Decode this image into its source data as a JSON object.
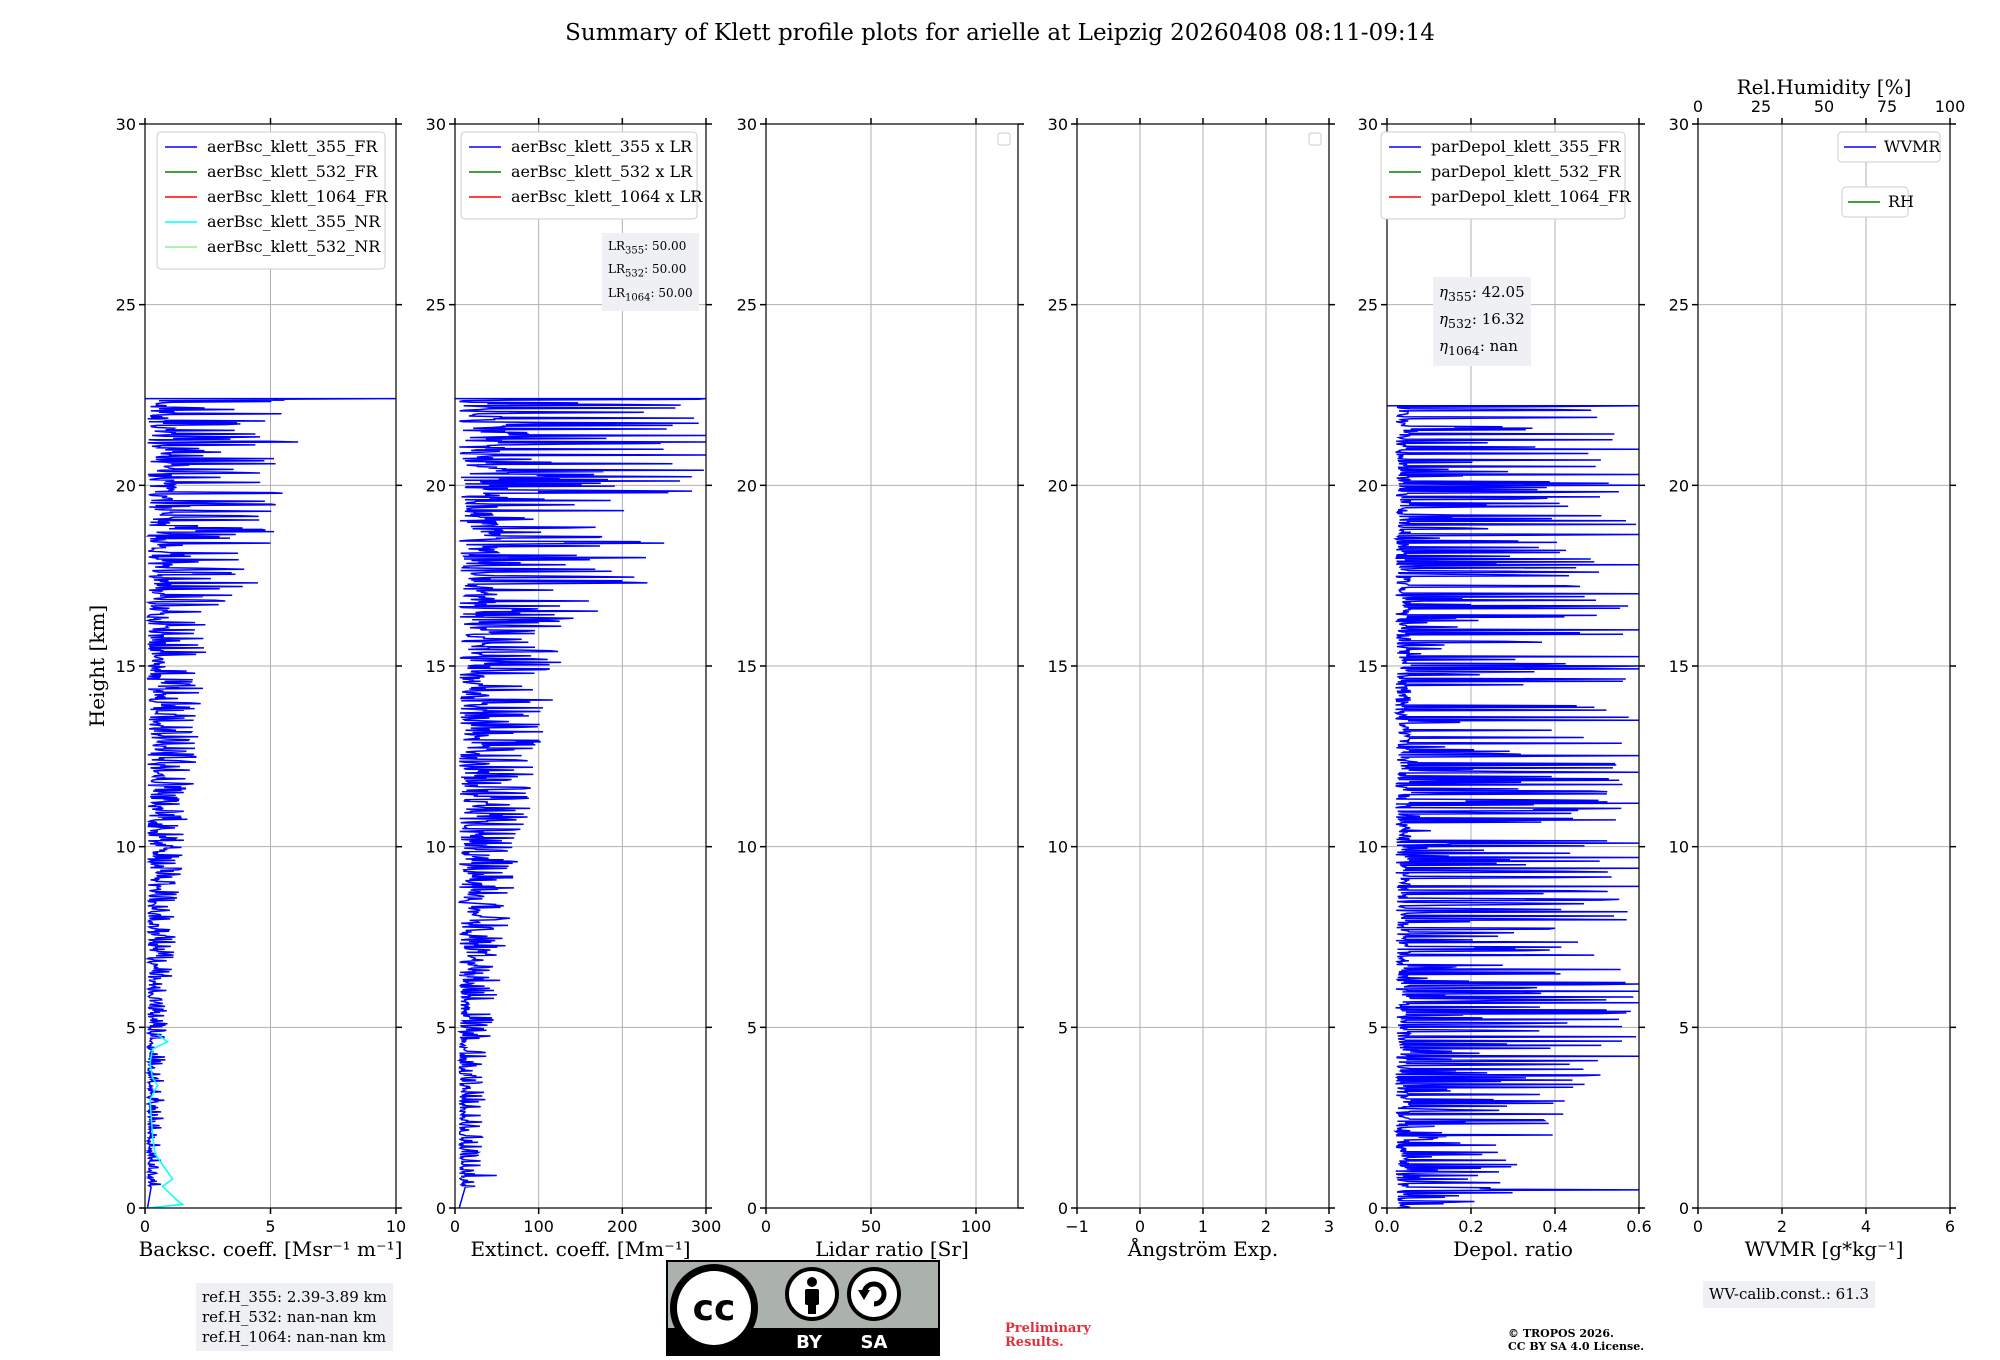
{
  "title": "Summary of Klett profile plots for arielle at Leipzig 20260408 08:11-09:14",
  "colors": {
    "blue": "#0000ff",
    "green": "#008000",
    "red": "#ff0000",
    "cyan": "#00ffff",
    "lightgreen": "#90ee90",
    "grid": "#b0b0b0"
  },
  "chart_data": [
    {
      "type": "line",
      "name": "backscatter",
      "xlabel": "Backsc. coeff. [Msr⁻¹ m⁻¹]",
      "ylabel": "Height [km]",
      "xlim": [
        0,
        10
      ],
      "ylim": [
        0,
        30
      ],
      "xticks": [
        0,
        5,
        10
      ],
      "yticks": [
        0,
        5,
        10,
        15,
        20,
        25,
        30
      ],
      "legend": [
        "aerBsc_klett_355_FR",
        "aerBsc_klett_532_FR",
        "aerBsc_klett_1064_FR",
        "aerBsc_klett_355_NR",
        "aerBsc_klett_532_NR"
      ],
      "legend_colors": [
        "blue",
        "green",
        "red",
        "cyan",
        "lightgreen"
      ],
      "series": [
        {
          "name": "aerBsc_klett_355_FR",
          "color": "blue",
          "base": 0.1,
          "noise_lo": [
            0.15,
            0.3,
            1.0,
            1.0,
            1.6
          ],
          "noise_hi": [
            0.5,
            0.8,
            1.5,
            2.5,
            6.0
          ],
          "spikes": [
            [
              22.4,
              10
            ],
            [
              21.7,
              3.8
            ],
            [
              21.2,
              6.1
            ],
            [
              20.6,
              5.2
            ],
            [
              19.8,
              5.1
            ],
            [
              18.4,
              5.0
            ],
            [
              17.3,
              4.5
            ],
            [
              16.8,
              3.2
            ],
            [
              16.2,
              2.0
            ],
            [
              14.8,
              2.0
            ],
            [
              13.3,
              1.9
            ],
            [
              11.6,
              1.6
            ],
            [
              10.0,
              1.0
            ]
          ],
          "cutoff": 22.4
        },
        {
          "name": "aerBsc_klett_355_NR",
          "color": "cyan",
          "points": [
            [
              0.0,
              0.1
            ],
            [
              0.1,
              1.5
            ],
            [
              0.2,
              1.3
            ],
            [
              0.4,
              1.0
            ],
            [
              0.6,
              0.7
            ],
            [
              0.8,
              1.1
            ],
            [
              1.0,
              0.9
            ],
            [
              1.5,
              0.4
            ],
            [
              2.0,
              0.3
            ],
            [
              2.5,
              0.25
            ],
            [
              3.0,
              0.2
            ],
            [
              3.4,
              0.5
            ],
            [
              3.6,
              0.3
            ],
            [
              4.0,
              0.2
            ],
            [
              4.4,
              0.3
            ],
            [
              4.6,
              0.9
            ],
            [
              4.8,
              0.5
            ]
          ]
        }
      ]
    },
    {
      "type": "line",
      "name": "extinction",
      "xlabel": "Extinct. coeff. [Mm⁻¹]",
      "xlim": [
        0,
        300
      ],
      "ylim": [
        0,
        30
      ],
      "xticks": [
        0,
        100,
        200,
        300
      ],
      "legend": [
        "aerBsc_klett_355 x LR",
        "aerBsc_klett_532 x LR",
        "aerBsc_klett_1064 x LR"
      ],
      "legend_colors": [
        "blue",
        "green",
        "red"
      ],
      "series": [
        {
          "name": "aerBsc_klett_355 x LR",
          "color": "blue",
          "base": 5,
          "noise_lo": [
            7,
            15,
            50,
            50,
            80
          ],
          "noise_hi": [
            25,
            40,
            75,
            125,
            300
          ],
          "spikes": [
            [
              22.4,
              300
            ],
            [
              21.2,
              300
            ],
            [
              20.6,
              260
            ],
            [
              19.8,
              255
            ],
            [
              18.4,
              250
            ],
            [
              17.3,
              230
            ],
            [
              16.8,
              160
            ],
            [
              16.2,
              100
            ],
            [
              14.8,
              95
            ],
            [
              13.3,
              75
            ],
            [
              11.6,
              80
            ],
            [
              10.0,
              45
            ],
            [
              0.9,
              50
            ]
          ],
          "cutoff": 22.4
        }
      ]
    },
    {
      "type": "line",
      "name": "lidar_ratio",
      "xlabel": "Lidar ratio [Sr]",
      "xlim": [
        0,
        120
      ],
      "ylim": [
        0,
        30
      ],
      "xticks": [
        0,
        50,
        100
      ],
      "series": []
    },
    {
      "type": "line",
      "name": "angstrom",
      "xlabel": "Ångström Exp.",
      "xlim": [
        -1,
        3
      ],
      "ylim": [
        0,
        30
      ],
      "xticks": [
        -1,
        0,
        1,
        2,
        3
      ],
      "series": []
    },
    {
      "type": "line",
      "name": "depolarization",
      "xlabel": "Depol. ratio",
      "xlim": [
        0,
        0.6
      ],
      "ylim": [
        0,
        30
      ],
      "xticks": [
        "0.0",
        "0.2",
        "0.4",
        "0.6"
      ],
      "legend": [
        "parDepol_klett_355_FR",
        "parDepol_klett_532_FR",
        "parDepol_klett_1064_FR"
      ],
      "legend_colors": [
        "blue",
        "green",
        "red"
      ],
      "series": [
        {
          "name": "parDepol_klett_355_FR",
          "color": "blue",
          "base": 0.02,
          "noise_lo": [
            0.05,
            0.05,
            0.05,
            0.05,
            0.05
          ],
          "noise_hi": [
            0.25,
            0.6,
            0.6,
            0.6,
            0.6
          ],
          "spikes": [
            [
              0.5,
              0.6
            ],
            [
              4.2,
              0.6
            ],
            [
              6.0,
              0.6
            ],
            [
              6.2,
              0.6
            ],
            [
              8.9,
              0.6
            ],
            [
              9.4,
              0.6
            ],
            [
              9.7,
              0.6
            ],
            [
              11.2,
              0.6
            ],
            [
              13.5,
              0.6
            ],
            [
              15.0,
              0.6
            ],
            [
              16.0,
              0.6
            ],
            [
              17.0,
              0.6
            ],
            [
              17.8,
              0.6
            ],
            [
              20.0,
              0.6
            ],
            [
              20.3,
              0.6
            ],
            [
              21.0,
              0.6
            ]
          ],
          "cutoff": 22.2
        }
      ]
    },
    {
      "type": "line",
      "name": "wvmr",
      "xlabel": "WVMR [g*kg⁻¹]",
      "xlim": [
        0,
        6
      ],
      "ylim": [
        0,
        30
      ],
      "xticks": [
        0,
        2,
        4,
        6
      ],
      "top_axis": {
        "label": "Rel.Humidity [%]",
        "ticks": [
          0,
          25,
          50,
          75,
          100
        ],
        "lim": [
          0,
          100
        ]
      },
      "legend": [
        "WVMR",
        "RH"
      ],
      "legend_colors": [
        "blue",
        "green"
      ],
      "series": []
    }
  ],
  "info_boxes": {
    "lr": [
      "50.00",
      "50.00",
      "50.00"
    ],
    "eta": [
      "42.05",
      "16.32",
      "nan"
    ],
    "ref_h": [
      "ref.H_355: 2.39-3.89 km",
      "ref.H_532: nan-nan km",
      "ref.H_1064: nan-nan km"
    ],
    "wv_calib": "WV-calib.const.: 61.3"
  },
  "badge": {
    "by": "BY",
    "sa": "SA",
    "cc": "cc"
  },
  "preliminary": [
    "Preliminary",
    "Results."
  ],
  "tropos": [
    "© TROPOS 2026.",
    "CC BY SA 4.0 License."
  ]
}
